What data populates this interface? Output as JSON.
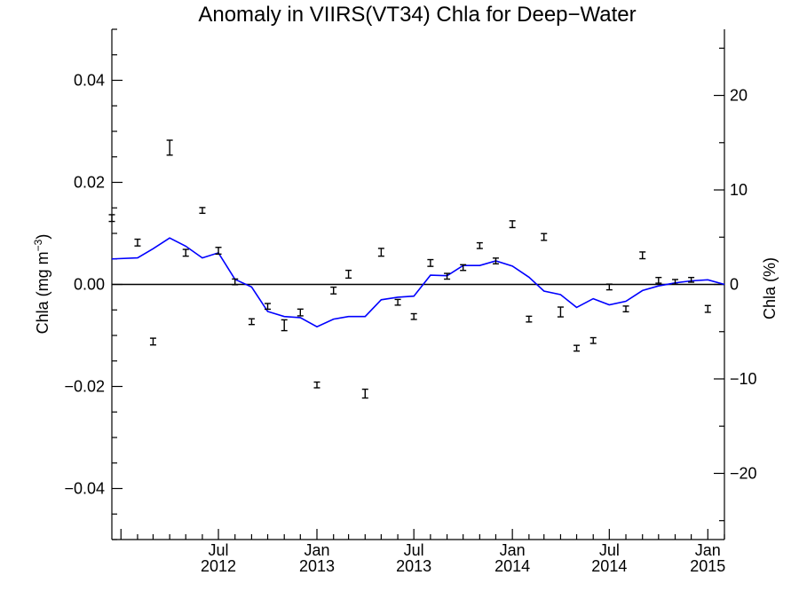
{
  "chart_data": {
    "type": "scatter",
    "title": "Anomaly in VIIRS(VT34) Chla for Deep−Water",
    "ylabel": "Chla (mg m",
    "ylabel_sup": "−3",
    "ylabel_close": ")",
    "y2label": "Chla (%)",
    "xlim": [
      "2011-12-15",
      "2015-02-01"
    ],
    "ylim": [
      -0.05,
      0.05
    ],
    "y2lim": [
      -27,
      27
    ],
    "grid": false,
    "x_ticks": [
      {
        "date": "2012-07-01",
        "month": "Jul",
        "year": "2012"
      },
      {
        "date": "2013-01-01",
        "month": "Jan",
        "year": "2013"
      },
      {
        "date": "2013-07-01",
        "month": "Jul",
        "year": "2013"
      },
      {
        "date": "2014-01-01",
        "month": "Jan",
        "year": "2014"
      },
      {
        "date": "2014-07-01",
        "month": "Jul",
        "year": "2014"
      },
      {
        "date": "2015-01-01",
        "month": "Jan",
        "year": "2015"
      }
    ],
    "y_ticks": [
      {
        "value": 0.04,
        "label": "0.04"
      },
      {
        "value": 0.02,
        "label": "0.02"
      },
      {
        "value": 0.0,
        "label": "0.00"
      },
      {
        "value": -0.02,
        "label": "−0.02"
      },
      {
        "value": -0.04,
        "label": "−0.04"
      }
    ],
    "y2_ticks": [
      {
        "value": 20,
        "label": "20"
      },
      {
        "value": 10,
        "label": "10"
      },
      {
        "value": 0,
        "label": "0"
      },
      {
        "value": -10,
        "label": "−10"
      },
      {
        "value": -20,
        "label": "−20"
      }
    ],
    "points": [
      {
        "x": "2011-12-15",
        "y": 0.013,
        "err": 0.0004
      },
      {
        "x": "2012-02-01",
        "y": 0.0082,
        "err": 0.0004
      },
      {
        "x": "2012-03-01",
        "y": -0.0112,
        "err": 0.0004
      },
      {
        "x": "2012-04-01",
        "y": 0.0268,
        "err": 0.0012
      },
      {
        "x": "2012-05-01",
        "y": 0.0062,
        "err": 0.0004
      },
      {
        "x": "2012-06-01",
        "y": 0.0145,
        "err": 0.0003
      },
      {
        "x": "2012-07-01",
        "y": 0.0066,
        "err": 0.0004
      },
      {
        "x": "2012-08-01",
        "y": 0.0005,
        "err": 0.0003
      },
      {
        "x": "2012-09-01",
        "y": -0.0073,
        "err": 0.0003
      },
      {
        "x": "2012-10-01",
        "y": -0.0043,
        "err": 0.0003
      },
      {
        "x": "2012-11-01",
        "y": -0.008,
        "err": 0.0008
      },
      {
        "x": "2012-12-01",
        "y": -0.0055,
        "err": 0.0004
      },
      {
        "x": "2013-01-01",
        "y": -0.0197,
        "err": 0.0003
      },
      {
        "x": "2013-02-01",
        "y": -0.0012,
        "err": 0.0004
      },
      {
        "x": "2013-03-01",
        "y": 0.002,
        "err": 0.0005
      },
      {
        "x": "2013-04-01",
        "y": -0.0214,
        "err": 0.0006
      },
      {
        "x": "2013-05-01",
        "y": 0.0063,
        "err": 0.0005
      },
      {
        "x": "2013-06-01",
        "y": -0.0035,
        "err": 0.0003
      },
      {
        "x": "2013-07-01",
        "y": -0.0063,
        "err": 0.0003
      },
      {
        "x": "2013-08-01",
        "y": 0.0042,
        "err": 0.0004
      },
      {
        "x": "2013-09-01",
        "y": 0.0016,
        "err": 0.0003
      },
      {
        "x": "2013-10-01",
        "y": 0.0033,
        "err": 0.0003
      },
      {
        "x": "2013-11-01",
        "y": 0.0076,
        "err": 0.0003
      },
      {
        "x": "2013-12-01",
        "y": 0.0046,
        "err": 0.0003
      },
      {
        "x": "2014-01-01",
        "y": 0.0118,
        "err": 0.0004
      },
      {
        "x": "2014-02-01",
        "y": -0.0068,
        "err": 0.0003
      },
      {
        "x": "2014-03-01",
        "y": 0.0093,
        "err": 0.0004
      },
      {
        "x": "2014-04-01",
        "y": -0.0054,
        "err": 0.0007
      },
      {
        "x": "2014-05-01",
        "y": -0.0125,
        "err": 0.0003
      },
      {
        "x": "2014-06-01",
        "y": -0.011,
        "err": 0.0003
      },
      {
        "x": "2014-07-01",
        "y": -0.0005,
        "err": 0.0003
      },
      {
        "x": "2014-08-01",
        "y": -0.0048,
        "err": 0.0003
      },
      {
        "x": "2014-09-01",
        "y": 0.0057,
        "err": 0.0004
      },
      {
        "x": "2014-10-01",
        "y": 0.0008,
        "err": 0.0003
      },
      {
        "x": "2014-11-01",
        "y": 0.0005,
        "err": 0.0002
      },
      {
        "x": "2014-12-01",
        "y": 0.0009,
        "err": 0.0002
      },
      {
        "x": "2015-01-01",
        "y": -0.0048,
        "err": 0.0004
      }
    ],
    "smooth_line": {
      "color": "#0000ff",
      "points": [
        {
          "x": "2011-12-15",
          "y": 0.005
        },
        {
          "x": "2012-02-01",
          "y": 0.0052
        },
        {
          "x": "2012-03-01",
          "y": 0.007
        },
        {
          "x": "2012-04-01",
          "y": 0.0091
        },
        {
          "x": "2012-05-01",
          "y": 0.0075
        },
        {
          "x": "2012-06-01",
          "y": 0.0052
        },
        {
          "x": "2012-07-01",
          "y": 0.0062
        },
        {
          "x": "2012-08-01",
          "y": 0.001
        },
        {
          "x": "2012-09-01",
          "y": -0.0005
        },
        {
          "x": "2012-10-01",
          "y": -0.0053
        },
        {
          "x": "2012-11-01",
          "y": -0.0063
        },
        {
          "x": "2012-12-01",
          "y": -0.0065
        },
        {
          "x": "2013-01-01",
          "y": -0.0083
        },
        {
          "x": "2013-02-01",
          "y": -0.0068
        },
        {
          "x": "2013-03-01",
          "y": -0.0063
        },
        {
          "x": "2013-04-01",
          "y": -0.0063
        },
        {
          "x": "2013-05-01",
          "y": -0.003
        },
        {
          "x": "2013-06-01",
          "y": -0.0025
        },
        {
          "x": "2013-07-01",
          "y": -0.0023
        },
        {
          "x": "2013-08-01",
          "y": 0.0018
        },
        {
          "x": "2013-09-01",
          "y": 0.0017
        },
        {
          "x": "2013-10-01",
          "y": 0.0037
        },
        {
          "x": "2013-11-01",
          "y": 0.0037
        },
        {
          "x": "2013-12-01",
          "y": 0.0046
        },
        {
          "x": "2014-01-01",
          "y": 0.0036
        },
        {
          "x": "2014-02-01",
          "y": 0.0014
        },
        {
          "x": "2014-03-01",
          "y": -0.0013
        },
        {
          "x": "2014-04-01",
          "y": -0.002
        },
        {
          "x": "2014-05-01",
          "y": -0.0045
        },
        {
          "x": "2014-06-01",
          "y": -0.0028
        },
        {
          "x": "2014-07-01",
          "y": -0.004
        },
        {
          "x": "2014-08-01",
          "y": -0.0033
        },
        {
          "x": "2014-09-01",
          "y": -0.0012
        },
        {
          "x": "2014-10-01",
          "y": -0.0003
        },
        {
          "x": "2014-11-01",
          "y": 0.0003
        },
        {
          "x": "2014-12-01",
          "y": 0.0007
        },
        {
          "x": "2015-01-01",
          "y": 0.0009
        },
        {
          "x": "2015-02-01",
          "y": 0.0
        }
      ]
    },
    "zero_line": true
  }
}
